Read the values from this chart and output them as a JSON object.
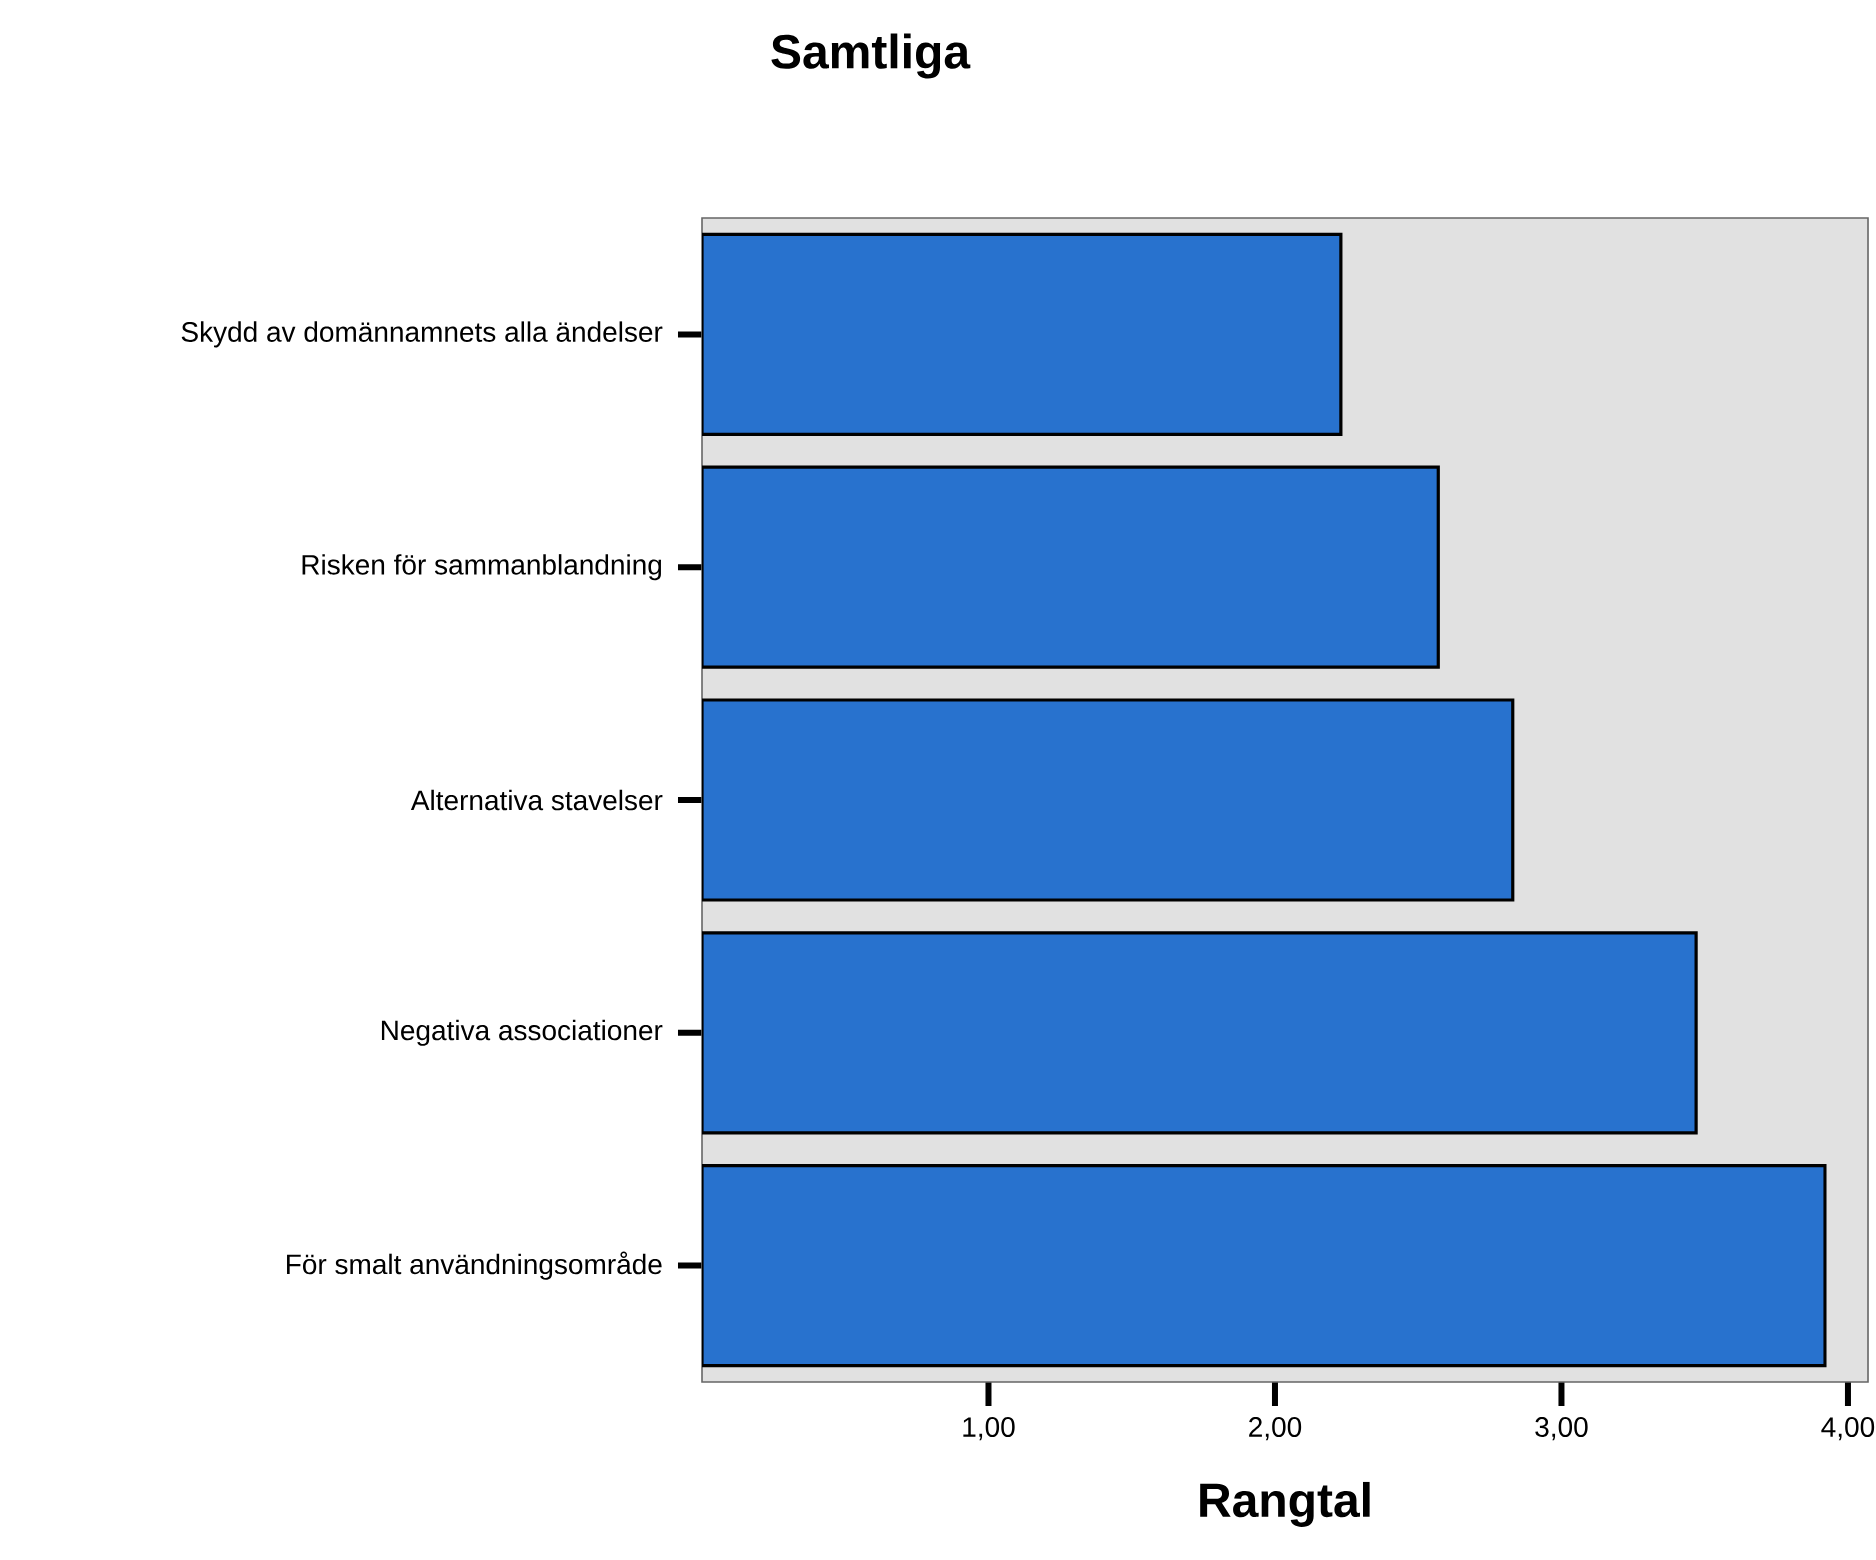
{
  "chart_data": {
    "type": "bar",
    "orientation": "horizontal",
    "title": "Samtliga",
    "xlabel": "Rangtal",
    "categories": [
      "Skydd av domännamnets alla ändelser",
      "Risken för sammanblandning",
      "Alternativa stavelser",
      "Negativa associationer",
      "För smalt användningsområde"
    ],
    "values": [
      2.23,
      2.57,
      2.83,
      3.47,
      3.92
    ],
    "color": "#2872ce",
    "xlim": [
      0,
      4.07
    ],
    "xticks": [
      {
        "value": 1,
        "label": "1,00"
      },
      {
        "value": 2,
        "label": "2,00"
      },
      {
        "value": 3,
        "label": "3,00"
      },
      {
        "value": 4,
        "label": "4,00"
      }
    ],
    "grid": false
  }
}
